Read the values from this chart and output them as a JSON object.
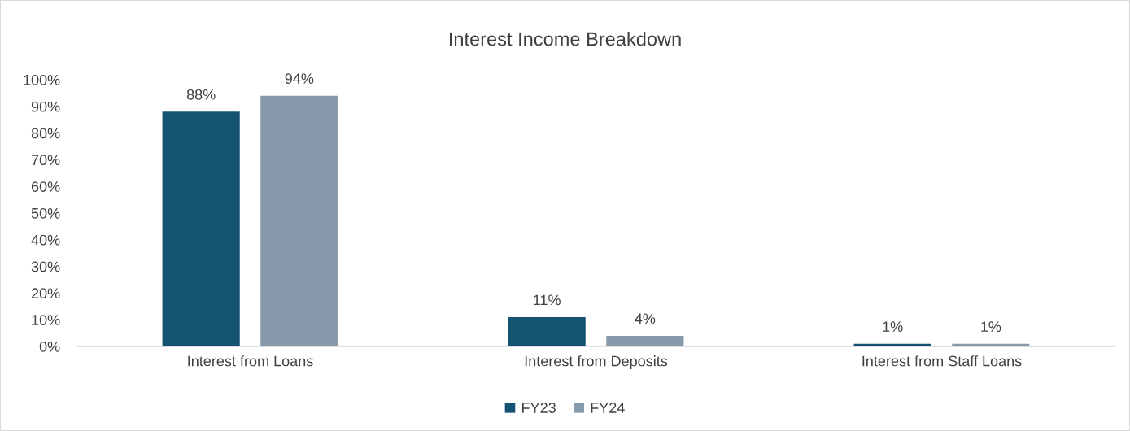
{
  "chart_data": {
    "type": "bar",
    "title": "Interest Income Breakdown",
    "categories": [
      "Interest from Loans",
      "Interest from Deposits",
      "Interest from Staff Loans"
    ],
    "series": [
      {
        "name": "FY23",
        "color": "#145372",
        "values": [
          88,
          11,
          1
        ],
        "value_labels": [
          "88%",
          "11%",
          "1%"
        ]
      },
      {
        "name": "FY24",
        "color": "#879aab",
        "values": [
          94,
          4,
          1
        ],
        "value_labels": [
          "94%",
          "4%",
          "1%"
        ]
      }
    ],
    "ylim": [
      0,
      100
    ],
    "yticks": [
      {
        "value": 0,
        "label": "0%"
      },
      {
        "value": 10,
        "label": "10%"
      },
      {
        "value": 20,
        "label": "20%"
      },
      {
        "value": 30,
        "label": "30%"
      },
      {
        "value": 40,
        "label": "40%"
      },
      {
        "value": 50,
        "label": "50%"
      },
      {
        "value": 60,
        "label": "60%"
      },
      {
        "value": 70,
        "label": "70%"
      },
      {
        "value": 80,
        "label": "80%"
      },
      {
        "value": 90,
        "label": "90%"
      },
      {
        "value": 100,
        "label": "100%"
      }
    ],
    "grid": false,
    "legend": "bottom"
  }
}
